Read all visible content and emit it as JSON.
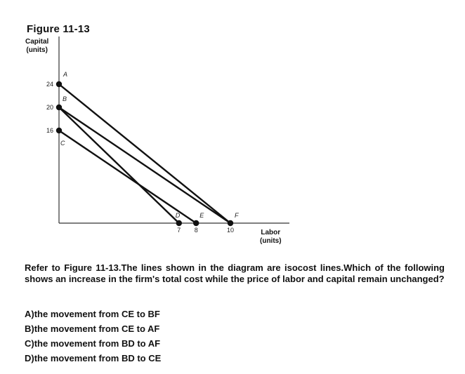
{
  "figure": {
    "title": "Figure 11-13"
  },
  "chart_data": {
    "type": "line",
    "ylabel": [
      "Capital",
      "(units)"
    ],
    "xlabel": [
      "Labor",
      "(units)"
    ],
    "x_ticks": [
      7,
      8,
      10
    ],
    "y_ticks": [
      16,
      20,
      24
    ],
    "points": [
      {
        "name": "A",
        "x": 0,
        "y": 24
      },
      {
        "name": "B",
        "x": 0,
        "y": 20
      },
      {
        "name": "C",
        "x": 0,
        "y": 16
      },
      {
        "name": "D",
        "x": 7,
        "y": 0
      },
      {
        "name": "E",
        "x": 8,
        "y": 0
      },
      {
        "name": "F",
        "x": 10,
        "y": 0
      }
    ],
    "lines": [
      {
        "from": "A",
        "to": "F"
      },
      {
        "from": "B",
        "to": "F"
      },
      {
        "from": "B",
        "to": "D"
      },
      {
        "from": "C",
        "to": "E"
      }
    ]
  },
  "question": {
    "text": "Refer to Figure 11-13.The lines shown in the diagram are isocost lines.Which of the following shows an increase in the firm's total cost while the price of labor and capital remain unchanged?",
    "options": [
      "A)the movement from CE to BF",
      "B)the movement from CE to AF",
      "C)the movement from BD to AF",
      "D)the movement from BD to CE"
    ]
  }
}
